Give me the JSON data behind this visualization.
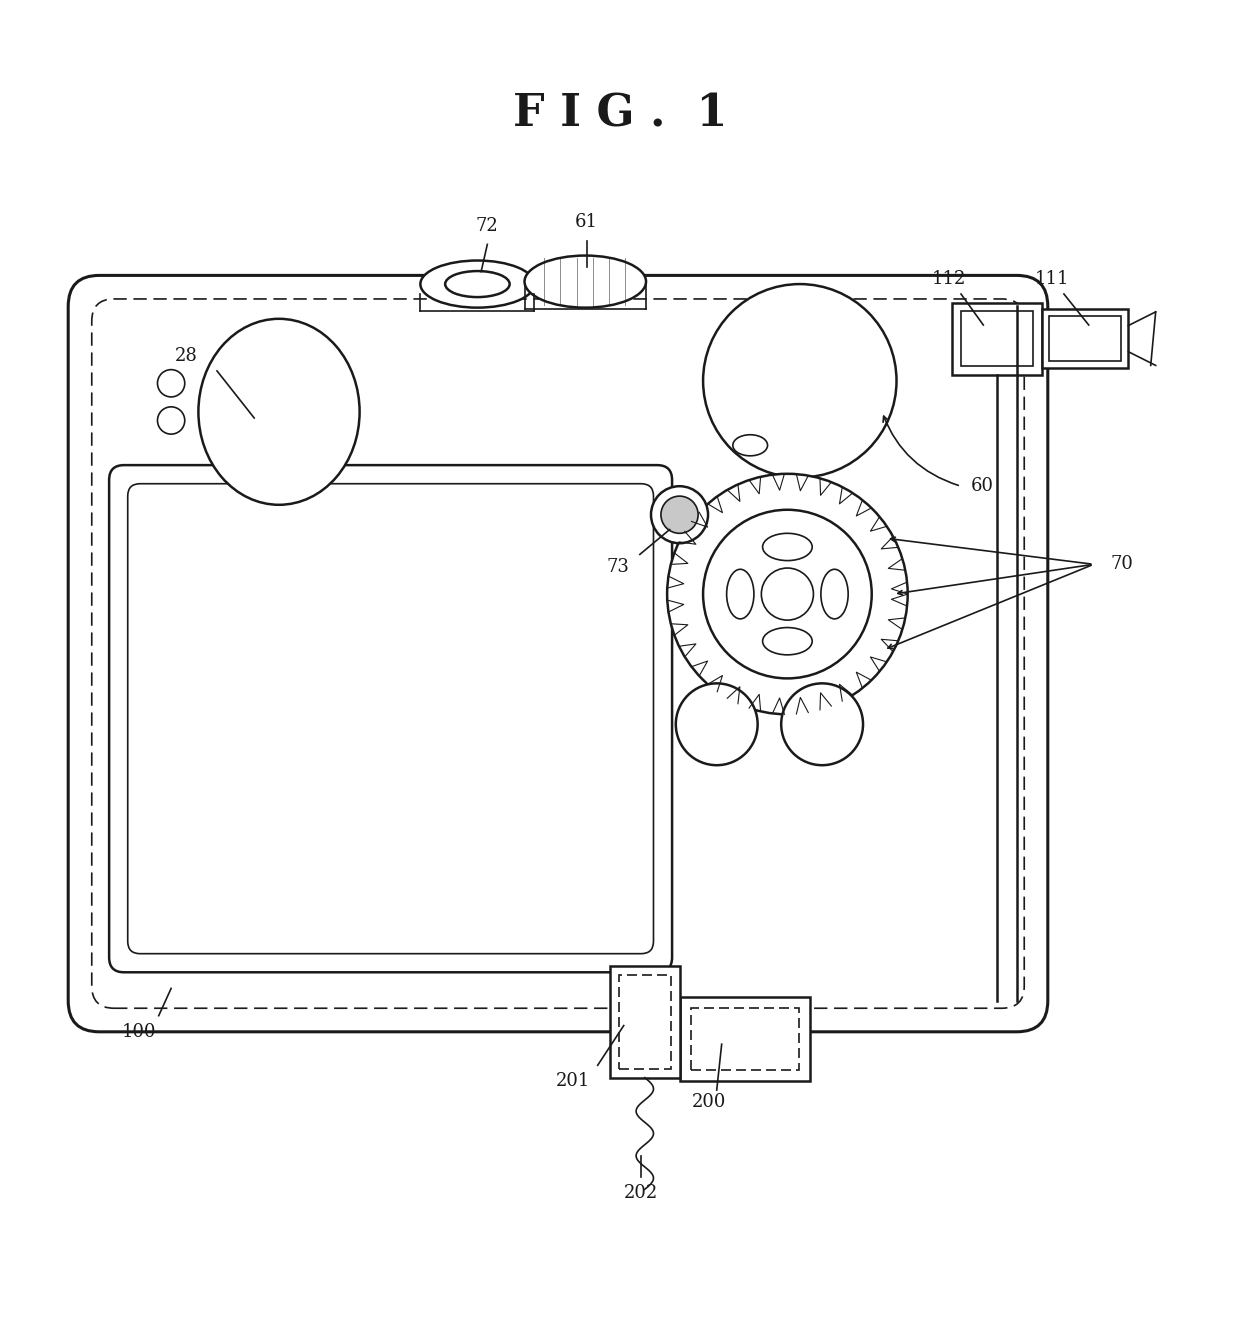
{
  "title": "F I G .  1",
  "bg_color": "#ffffff",
  "line_color": "#1a1a1a",
  "lw": 1.8,
  "lw_thin": 1.2,
  "lw_thick": 2.2
}
